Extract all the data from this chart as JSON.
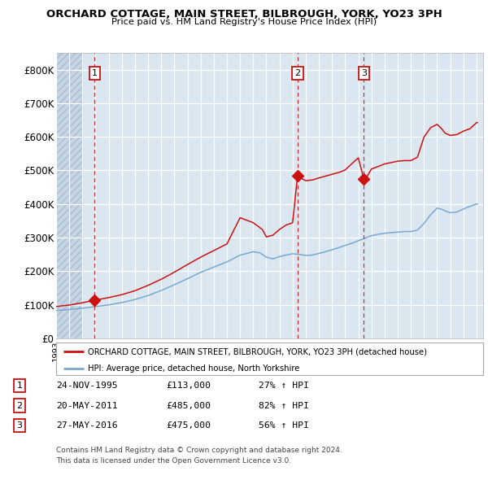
{
  "title": "ORCHARD COTTAGE, MAIN STREET, BILBROUGH, YORK, YO23 3PH",
  "subtitle": "Price paid vs. HM Land Registry's House Price Index (HPI)",
  "sale_prices": [
    113000,
    485000,
    475000
  ],
  "sale_years": [
    1995.9167,
    2011.3833,
    2016.4167
  ],
  "sale_labels": [
    "1",
    "2",
    "3"
  ],
  "hpi_color": "#7aa8d2",
  "price_color": "#cc1111",
  "vline_color": "#cc1111",
  "marker_color": "#cc1111",
  "plot_bg_color": "#dae6f0",
  "grid_color": "#ffffff",
  "ylim": [
    0,
    850000
  ],
  "yticks": [
    0,
    100000,
    200000,
    300000,
    400000,
    500000,
    600000,
    700000,
    800000
  ],
  "ytick_labels": [
    "£0",
    "£100K",
    "£200K",
    "£300K",
    "£400K",
    "£500K",
    "£600K",
    "£700K",
    "£800K"
  ],
  "xlim_start": 1993.0,
  "xlim_end": 2025.5,
  "legend_line1": "ORCHARD COTTAGE, MAIN STREET, BILBROUGH, YORK, YO23 3PH (detached house)",
  "legend_line2": "HPI: Average price, detached house, North Yorkshire",
  "table_rows": [
    [
      "1",
      "24-NOV-1995",
      "£113,000",
      "27% ↑ HPI"
    ],
    [
      "2",
      "20-MAY-2011",
      "£485,000",
      "82% ↑ HPI"
    ],
    [
      "3",
      "27-MAY-2016",
      "£475,000",
      "56% ↑ HPI"
    ]
  ],
  "footnote1": "Contains HM Land Registry data © Crown copyright and database right 2024.",
  "footnote2": "This data is licensed under the Open Government Licence v3.0.",
  "hatch_end_year": 1995.0
}
